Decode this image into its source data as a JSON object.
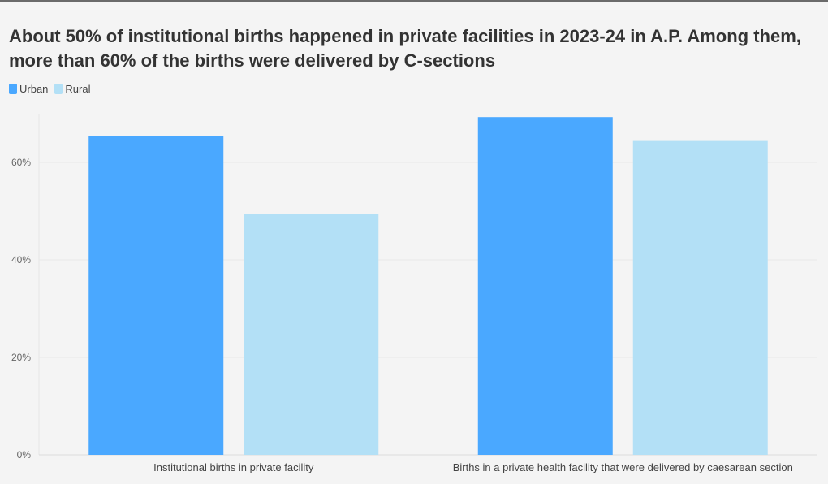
{
  "chart_data": {
    "type": "bar",
    "title": "About 50% of institutional births happened in private facilities in 2023-24 in A.P. Among them, more than 60% of the births were delivered by C-sections",
    "categories": [
      "Institutional births in private facility",
      "Births in a private health facility that were delivered by caesarean section"
    ],
    "series": [
      {
        "name": "Urban",
        "values": [
          65.4,
          69.3
        ],
        "color": "#4aa8ff"
      },
      {
        "name": "Rural",
        "values": [
          49.5,
          64.4
        ],
        "color": "#b3e0f6"
      }
    ],
    "ylim": [
      0,
      70
    ],
    "yticks": [
      {
        "value": 0,
        "label": "0%"
      },
      {
        "value": 20,
        "label": "20%"
      },
      {
        "value": 40,
        "label": "40%"
      },
      {
        "value": 60,
        "label": "60%"
      }
    ],
    "xlabel": "",
    "ylabel": "",
    "grid": true,
    "legend_position": "top-left"
  }
}
